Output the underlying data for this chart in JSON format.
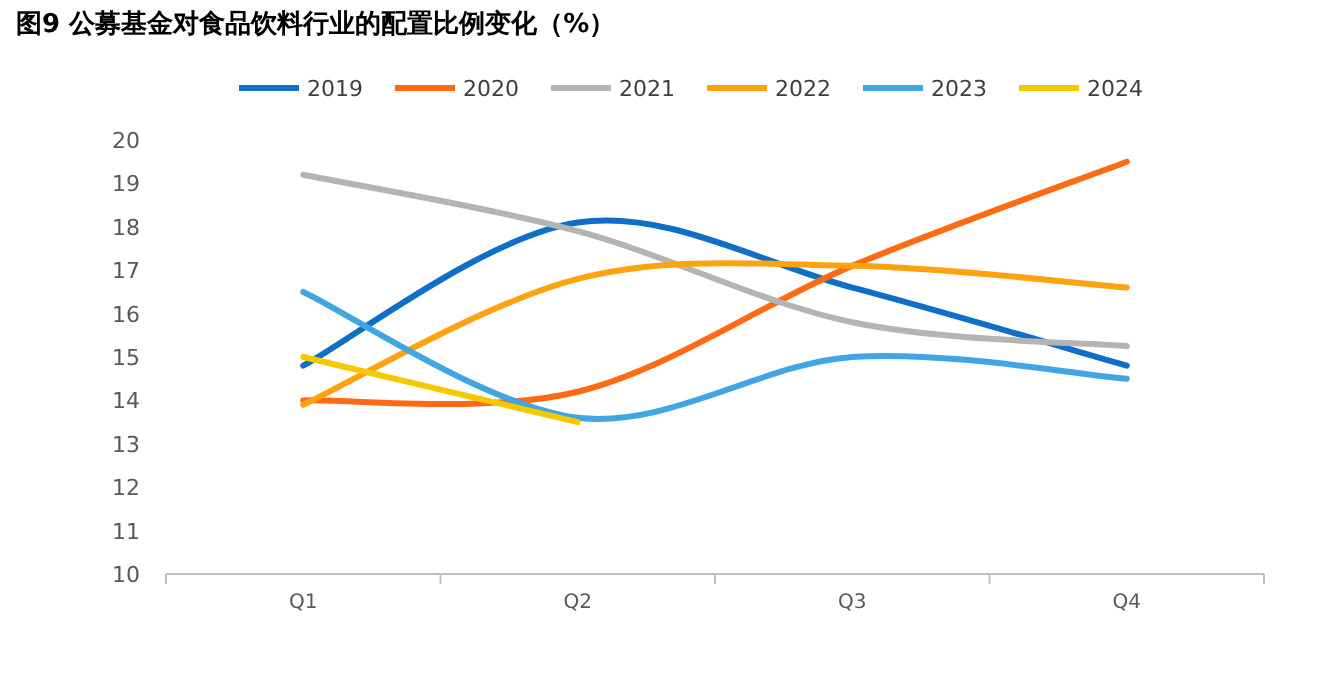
{
  "chart_data": {
    "type": "line",
    "title": "图9  公募基金对食品饮料行业的配置比例变化（%）",
    "categories": [
      "Q1",
      "Q2",
      "Q3",
      "Q4"
    ],
    "series": [
      {
        "name": "2019",
        "color": "#0f6fc6",
        "values": [
          14.8,
          18.1,
          16.6,
          14.8
        ]
      },
      {
        "name": "2020",
        "color": "#ff6a13",
        "values": [
          14.0,
          14.2,
          17.1,
          19.5
        ]
      },
      {
        "name": "2021",
        "color": "#b4b4b4",
        "values": [
          19.2,
          17.9,
          15.8,
          15.25
        ]
      },
      {
        "name": "2022",
        "color": "#ffa20f",
        "values": [
          13.9,
          16.8,
          17.1,
          16.6
        ]
      },
      {
        "name": "2023",
        "color": "#3fa6e2",
        "values": [
          16.5,
          13.6,
          15.0,
          14.5
        ]
      },
      {
        "name": "2024",
        "color": "#f5c800",
        "values": [
          15.0,
          13.5,
          null,
          null
        ]
      }
    ],
    "ylim": [
      10,
      20
    ],
    "yticks": [
      10,
      11,
      12,
      13,
      14,
      15,
      16,
      17,
      18,
      19,
      20
    ],
    "legend": "top"
  }
}
